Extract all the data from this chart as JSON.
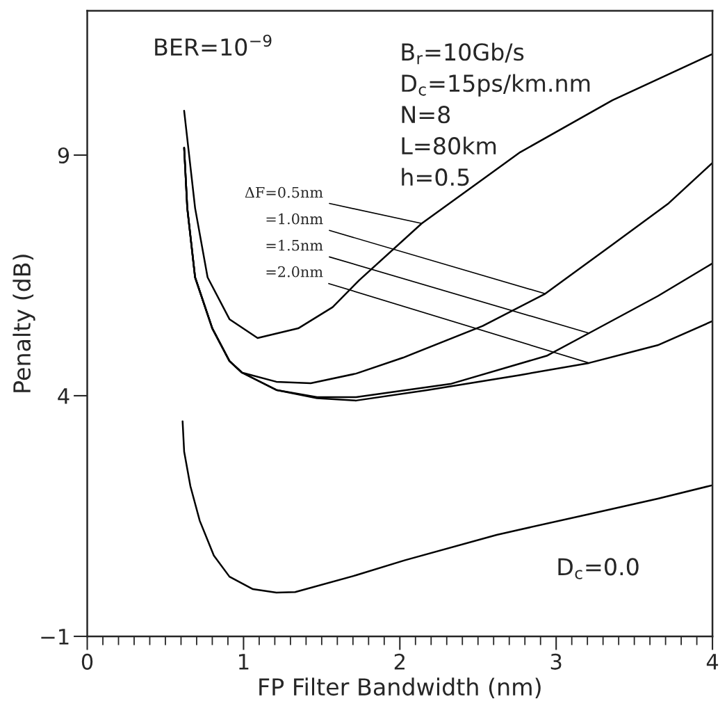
{
  "chart_data": {
    "type": "line",
    "xlabel": "FP Filter Bandwidth (nm)",
    "ylabel": "Penalty (dB)",
    "xlim": [
      0,
      4
    ],
    "ylim": [
      -1,
      12
    ],
    "xticks": [
      0,
      1,
      2,
      3,
      4
    ],
    "yticks": [
      {
        "value": -1,
        "label": "−1"
      },
      4,
      9
    ],
    "grid": false,
    "legend": false,
    "marker": "none",
    "line_style": "solid",
    "series": [
      {
        "color": "#000000",
        "x": [
          0.62,
          0.69,
          0.77,
          0.91,
          1.09,
          1.35,
          1.57,
          1.74,
          2.14,
          2.77,
          3.36,
          4.0
        ],
        "values": [
          9.92,
          7.9,
          6.46,
          5.59,
          5.2,
          5.4,
          5.84,
          6.4,
          7.58,
          9.06,
          10.14,
          11.1
        ]
      },
      {
        "color": "#000000",
        "x": [
          0.62,
          0.64,
          0.69,
          0.8,
          0.91,
          0.99,
          1.21,
          1.43,
          1.72,
          2.02,
          2.53,
          2.93,
          3.36,
          3.72,
          4.0
        ],
        "values": [
          9.15,
          7.9,
          6.46,
          5.4,
          4.72,
          4.48,
          4.29,
          4.26,
          4.46,
          4.79,
          5.45,
          6.12,
          7.14,
          8.0,
          8.84
        ]
      },
      {
        "color": "#000000",
        "x": [
          0.62,
          0.64,
          0.69,
          0.8,
          0.91,
          0.99,
          1.21,
          1.47,
          1.72,
          2.33,
          2.94,
          3.21,
          3.65,
          4.0
        ],
        "values": [
          9.15,
          7.9,
          6.46,
          5.4,
          4.72,
          4.48,
          4.12,
          3.97,
          3.97,
          4.25,
          4.83,
          5.3,
          6.07,
          6.75
        ]
      },
      {
        "color": "#000000",
        "x": [
          0.62,
          0.64,
          0.69,
          0.8,
          0.91,
          0.99,
          1.21,
          1.47,
          1.72,
          2.18,
          2.77,
          3.21,
          3.65,
          4.0
        ],
        "values": [
          9.15,
          7.9,
          6.46,
          5.4,
          4.72,
          4.48,
          4.12,
          3.95,
          3.9,
          4.12,
          4.43,
          4.68,
          5.05,
          5.55
        ]
      },
      {
        "color": "#000000",
        "x": [
          0.61,
          0.62,
          0.66,
          0.72,
          0.81,
          0.91,
          1.06,
          1.21,
          1.33,
          1.72,
          2.03,
          2.62,
          3.21,
          3.65,
          4.0
        ],
        "values": [
          3.47,
          2.84,
          2.12,
          1.4,
          0.68,
          0.24,
          -0.02,
          -0.09,
          -0.08,
          0.27,
          0.58,
          1.11,
          1.54,
          1.86,
          2.14
        ]
      }
    ],
    "annotations": [
      "BER=10$^{−9}$",
      "B$_{r}$=10Gb/s",
      "D$_{c}$=15ps/km.nm",
      "N=8",
      "L=80km",
      "h=0.5",
      {
        "text": "ΔF=0.5nm",
        "x": 2.14,
        "y": 7.58
      },
      {
        "text": "=1.0nm",
        "x": 2.93,
        "y": 6.12
      },
      {
        "text": "=1.5nm",
        "x": 3.21,
        "y": 5.3
      },
      {
        "text": "=2.0nm",
        "x": 3.21,
        "y": 4.68
      },
      "D$_{c}$=0.0"
    ]
  }
}
